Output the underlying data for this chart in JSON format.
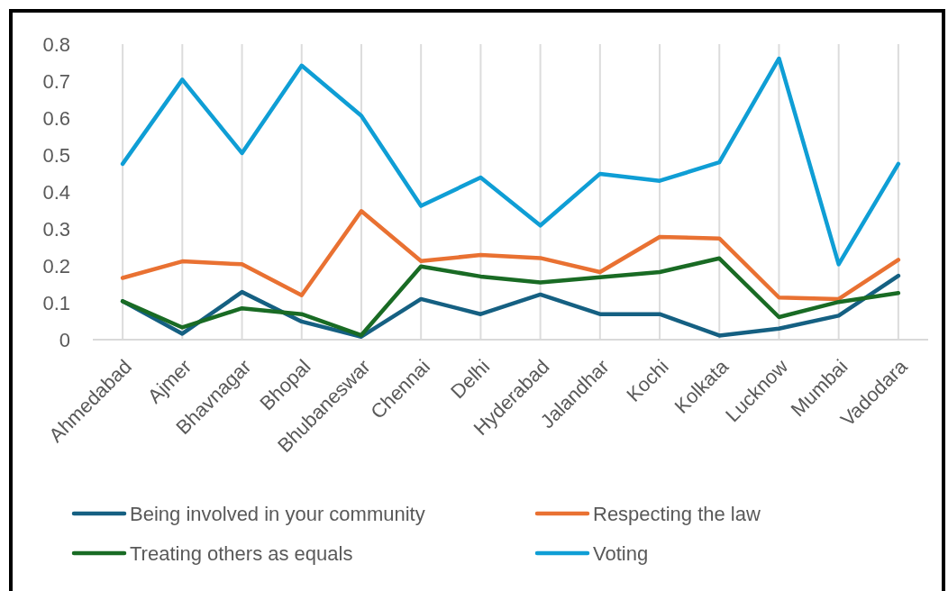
{
  "chart_data": {
    "type": "line",
    "categories": [
      "Ahmedabad",
      "Ajmer",
      "Bhavnagar",
      "Bhopal",
      "Bhubaneswar",
      "Chennai",
      "Delhi",
      "Hyderabad",
      "Jalandhar",
      "Kochi",
      "Kolkata",
      "Lucknow",
      "Mumbai",
      "Vadodara"
    ],
    "series": [
      {
        "name": "Being involved in your community",
        "color": "#156082",
        "values": [
          0.104,
          0.016,
          0.129,
          0.049,
          0.008,
          0.11,
          0.069,
          0.122,
          0.069,
          0.069,
          0.011,
          0.03,
          0.065,
          0.173
        ]
      },
      {
        "name": "Respecting the law",
        "color": "#e97132",
        "values": [
          0.167,
          0.212,
          0.204,
          0.12,
          0.348,
          0.213,
          0.229,
          0.221,
          0.183,
          0.278,
          0.274,
          0.114,
          0.11,
          0.216
        ]
      },
      {
        "name": "Treating others as equals",
        "color": "#196b24",
        "values": [
          0.104,
          0.033,
          0.085,
          0.069,
          0.012,
          0.198,
          0.171,
          0.155,
          0.169,
          0.183,
          0.22,
          0.061,
          0.102,
          0.126
        ]
      },
      {
        "name": "Voting",
        "color": "#0f9ed5",
        "values": [
          0.476,
          0.704,
          0.505,
          0.742,
          0.606,
          0.362,
          0.439,
          0.309,
          0.449,
          0.43,
          0.48,
          0.761,
          0.204,
          0.476
        ]
      }
    ],
    "ylim": [
      0,
      0.8
    ],
    "yticks": [
      0,
      0.1,
      0.2,
      0.3,
      0.4,
      0.5,
      0.6,
      0.7,
      0.8
    ],
    "grid": "x",
    "legend": "bottom"
  }
}
